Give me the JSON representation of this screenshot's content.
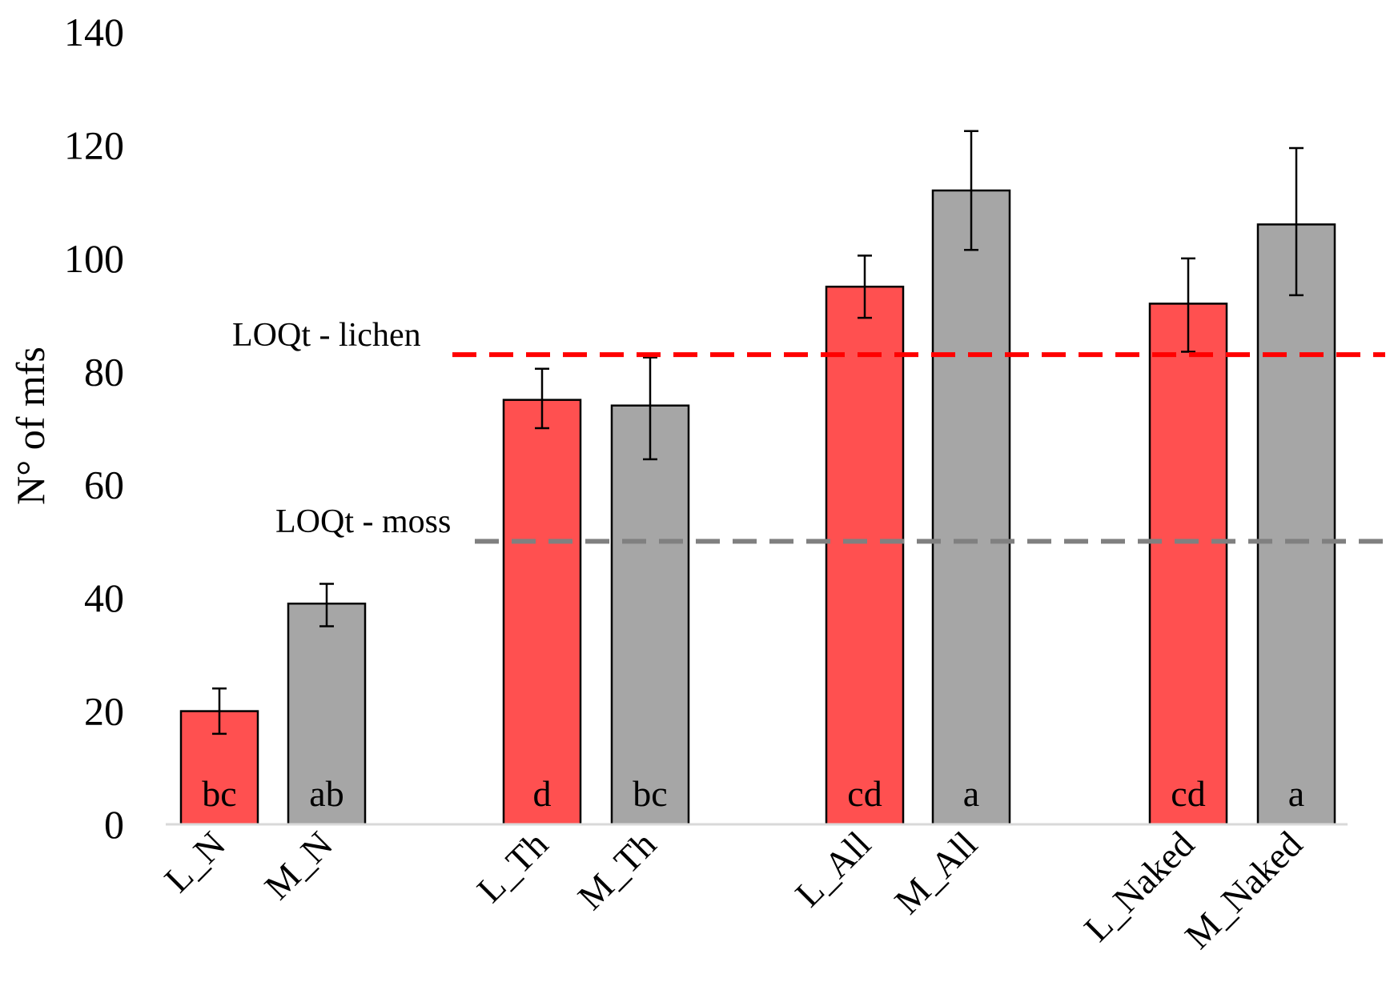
{
  "chart_data": {
    "type": "bar",
    "title": "",
    "xlabel": "",
    "ylabel": "N° of mfs",
    "ylim": [
      0,
      140
    ],
    "yticks": [
      0,
      20,
      40,
      60,
      80,
      100,
      120,
      140
    ],
    "grid": false,
    "categories": [
      "L_N",
      "M_N",
      "L_Th",
      "M_Th",
      "L_All",
      "M_All",
      "L_Naked",
      "M_Naked"
    ],
    "values": [
      20,
      39,
      75,
      74,
      95,
      112,
      92,
      106
    ],
    "error_lower": [
      16,
      35,
      70,
      64.5,
      89.5,
      101.5,
      83.5,
      93.5
    ],
    "error_upper": [
      24,
      42.5,
      80.5,
      82.5,
      100.5,
      122.5,
      100,
      119.5
    ],
    "significance_letters": [
      "bc",
      "ab",
      "d",
      "bc",
      "cd",
      "a",
      "cd",
      "a"
    ],
    "groups": [
      "N",
      "N",
      "Th",
      "Th",
      "All",
      "All",
      "Naked",
      "Naked"
    ],
    "bar_types": [
      "lichen",
      "moss",
      "lichen",
      "moss",
      "lichen",
      "moss",
      "lichen",
      "moss"
    ],
    "colors": {
      "lichen": "#ff5050",
      "moss": "#a6a6a6",
      "axis": "#d9d9d9",
      "lichen_line": "#ff0000",
      "moss_line": "#808080"
    },
    "reference_lines": [
      {
        "label": "LOQt - lichen",
        "value": 83,
        "color": "#ff0000"
      },
      {
        "label": "LOQt - moss",
        "value": 50,
        "color": "#808080"
      }
    ]
  }
}
